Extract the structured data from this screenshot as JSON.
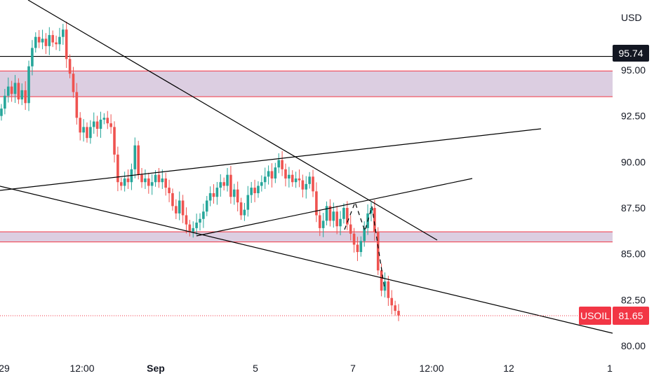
{
  "chart_data": {
    "type": "candlestick",
    "currency": "USD",
    "y_ticks": [
      "95.00",
      "92.50",
      "90.00",
      "87.50",
      "85.00",
      "82.50",
      "80.00"
    ],
    "x_ticks": [
      "29",
      "12:00",
      "Sep",
      "5",
      "7",
      "12:00",
      "12",
      "1"
    ],
    "bold_x_ticks": [
      "Sep"
    ],
    "ylim": [
      79.8,
      97.2
    ],
    "grid": false,
    "colors": {
      "up": "#26a69a",
      "down": "#ef5350",
      "zone_fill": "#d6c5dc",
      "zone_line": "#f23645",
      "line": "#000000"
    },
    "horizontal_line": {
      "value": 95.74,
      "label": "95.74"
    },
    "last_price": {
      "symbol": "USOIL",
      "value": 81.65,
      "label": "81.65",
      "color": "#f23645"
    },
    "zones": [
      {
        "from": 93.55,
        "to": 94.95
      },
      {
        "from": 85.65,
        "to": 86.2
      }
    ],
    "candle_closes": [
      92.9,
      93.6,
      94.1,
      93.7,
      94.3,
      93.4,
      93.9,
      93.2,
      95.2,
      96.2,
      96.8,
      96.5,
      96.7,
      96.3,
      96.9,
      96.5,
      96.4,
      96.8,
      97.2,
      95.6,
      94.8,
      93.8,
      92.4,
      91.6,
      91.9,
      91.3,
      91.9,
      92.2,
      91.8,
      92.3,
      92.4,
      92.1,
      91.9,
      90.4,
      88.9,
      88.7,
      89.1,
      88.9,
      89.6,
      90.9,
      89.3,
      88.9,
      89.1,
      88.7,
      88.9,
      89.3,
      88.9,
      89.1,
      88.6,
      88.3,
      87.6,
      87.2,
      87.9,
      87.1,
      86.6,
      86.2,
      86.4,
      86.7,
      86.9,
      87.3,
      87.9,
      88.3,
      88.1,
      88.6,
      88.9,
      88.7,
      89.3,
      88.1,
      88.5,
      87.8,
      87.1,
      87.4,
      88.2,
      88.6,
      88.3,
      88.7,
      88.9,
      89.2,
      89.5,
      89.1,
      89.7,
      90.1,
      89.6,
      89.1,
      89.3,
      88.9,
      89.1,
      89.0,
      88.5,
      88.8,
      89.2,
      88.4,
      87.1,
      86.4,
      86.8,
      87.6,
      86.8,
      87.3,
      86.5,
      86.9,
      87.5,
      86.6,
      86.1,
      85.5,
      85.1,
      85.7,
      86.4,
      87.2,
      87.5,
      86.2,
      84.1,
      83.0,
      83.5,
      82.6,
      82.2,
      81.9,
      81.65
    ]
  }
}
